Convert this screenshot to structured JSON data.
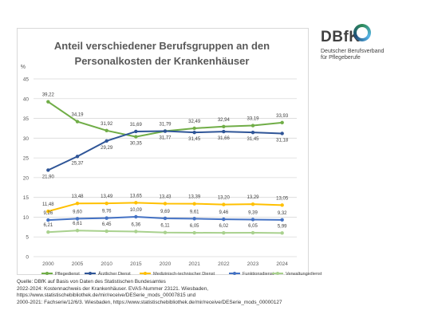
{
  "logo": {
    "wordmark": "DBfK",
    "subtitle_line1": "Deutscher Berufsverband",
    "subtitle_line2": "für Pflegeberufe"
  },
  "chart_data": {
    "type": "line",
    "title_line1": "Anteil verschiedener Berufsgruppen an den",
    "title_line2": "Personalkosten der Krankenhäuser",
    "ylabel": "%",
    "ylim": [
      0,
      45
    ],
    "yticks": [
      "0",
      "5",
      "10",
      "15",
      "20",
      "25",
      "30",
      "35",
      "40",
      "45"
    ],
    "grid": true,
    "legend_position": "bottom",
    "categories": [
      "2000",
      "2005",
      "2010",
      "2015",
      "2020",
      "2021",
      "2022",
      "2023",
      "2024"
    ],
    "series": [
      {
        "name": "Pflegedienst",
        "color": "#70ad47",
        "values": [
          39.22,
          34.19,
          31.92,
          30.35,
          31.79,
          32.49,
          32.94,
          33.19,
          33.93
        ],
        "labels": [
          "39,22",
          "34,19",
          "31,92",
          "30,35",
          "31,79",
          "32,49",
          "32,94",
          "33,19",
          "33,93"
        ]
      },
      {
        "name": "Ärztlicher Dienst",
        "color": "#2f5597",
        "values": [
          21.9,
          25.37,
          29.29,
          31.69,
          31.77,
          31.45,
          31.66,
          31.45,
          31.18
        ],
        "labels": [
          "21,90",
          "25,37",
          "29,29",
          "31,69",
          "31,77",
          "31,45",
          "31,66",
          "31,45",
          "31,18"
        ]
      },
      {
        "name": "Medizinisch-technischer Dienst",
        "color": "#ffc000",
        "values": [
          11.48,
          13.48,
          13.49,
          13.65,
          13.43,
          13.39,
          13.2,
          13.29,
          13.05
        ],
        "labels": [
          "11,48",
          "13,48",
          "13,49",
          "13,65",
          "13,43",
          "13,39",
          "13,20",
          "13,29",
          "13,05"
        ]
      },
      {
        "name": "Funktionsdienst",
        "color": "#4472c4",
        "values": [
          9.26,
          9.6,
          9.76,
          10.09,
          9.69,
          9.61,
          9.46,
          9.39,
          9.32
        ],
        "labels": [
          "9,26",
          "9,60",
          "9,76",
          "10,09",
          "9,69",
          "9,61",
          "9,46",
          "9,39",
          "9,32"
        ]
      },
      {
        "name": "Verwaltungsdienst",
        "color": "#a9d18e",
        "values": [
          6.21,
          6.61,
          6.45,
          6.36,
          6.11,
          6.05,
          6.02,
          6.05,
          5.99
        ],
        "labels": [
          "6,21",
          "6,61",
          "6,45",
          "6,36",
          "6,11",
          "6,05",
          "6,02",
          "6,05",
          "5,99"
        ]
      }
    ]
  },
  "source": {
    "line1": "Quelle: DBfK auf Basis von Daten des Statistischen Bundesamtes",
    "line2": "2022-2024: Kostennachweis der Krankenhäuser. EVAS-Nummer 23121. Wiesbaden,",
    "line3": "https://www.statistischebibliothek.de/mir/receive/DESerie_mods_00007815 und",
    "line4": "2000-2021: Fachserie/12/6/3. Wiesbaden, https://www.statistischebibliothek.de/mir/receive/DESerie_mods_00000127"
  }
}
